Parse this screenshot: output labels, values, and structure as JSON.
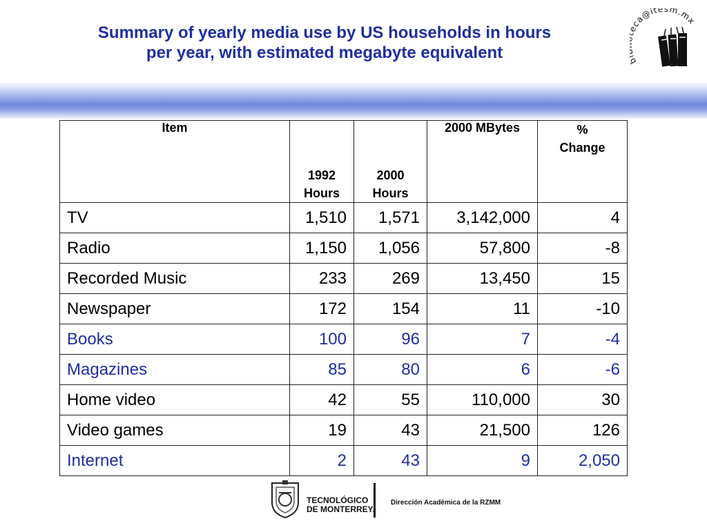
{
  "title": {
    "line1": "Summary of yearly media use by US households in hours",
    "line2": "per year, with estimated megabyte equivalent"
  },
  "library_logo": {
    "text": "biblioteca@itesm.mx"
  },
  "table": {
    "headers": {
      "item": "Item",
      "hours1992_line1": "1992",
      "hours1992_line2": "Hours",
      "hours2000_line1": "2000",
      "hours2000_line2": "Hours",
      "mbytes": "2000 MBytes",
      "change_line1": "%",
      "change_line2": "Change"
    },
    "rows": [
      {
        "item": "TV",
        "h1992": "1,510",
        "h2000": "1,571",
        "mb": "3,142,000",
        "change": "4",
        "color": "#000000"
      },
      {
        "item": "Radio",
        "h1992": "1,150",
        "h2000": "1,056",
        "mb": "57,800",
        "change": "-8",
        "color": "#000000"
      },
      {
        "item": "Recorded Music",
        "h1992": "233",
        "h2000": "269",
        "mb": "13,450",
        "change": "15",
        "color": "#000000"
      },
      {
        "item": "Newspaper",
        "h1992": "172",
        "h2000": "154",
        "mb": "11",
        "change": "-10",
        "color": "#000000"
      },
      {
        "item": "Books",
        "h1992": "100",
        "h2000": "96",
        "mb": "7",
        "change": "-4",
        "color": "#1f2f9e"
      },
      {
        "item": "Magazines",
        "h1992": "85",
        "h2000": "80",
        "mb": "6",
        "change": "-6",
        "color": "#1f2f9e"
      },
      {
        "item": "Home video",
        "h1992": "42",
        "h2000": "55",
        "mb": "110,000",
        "change": "30",
        "color": "#000000"
      },
      {
        "item": "Video games",
        "h1992": "19",
        "h2000": "43",
        "mb": "21,500",
        "change": "126",
        "color": "#000000"
      },
      {
        "item": "Internet",
        "h1992": "2",
        "h2000": "43",
        "mb": "9",
        "change": "2,050",
        "color": "#1f2f9e"
      }
    ]
  },
  "footer": {
    "brand_line1": "TECNOLÓGICO",
    "brand_line2": "DE MONTERREY.",
    "department": "Dirección Académica de la RZMM"
  }
}
